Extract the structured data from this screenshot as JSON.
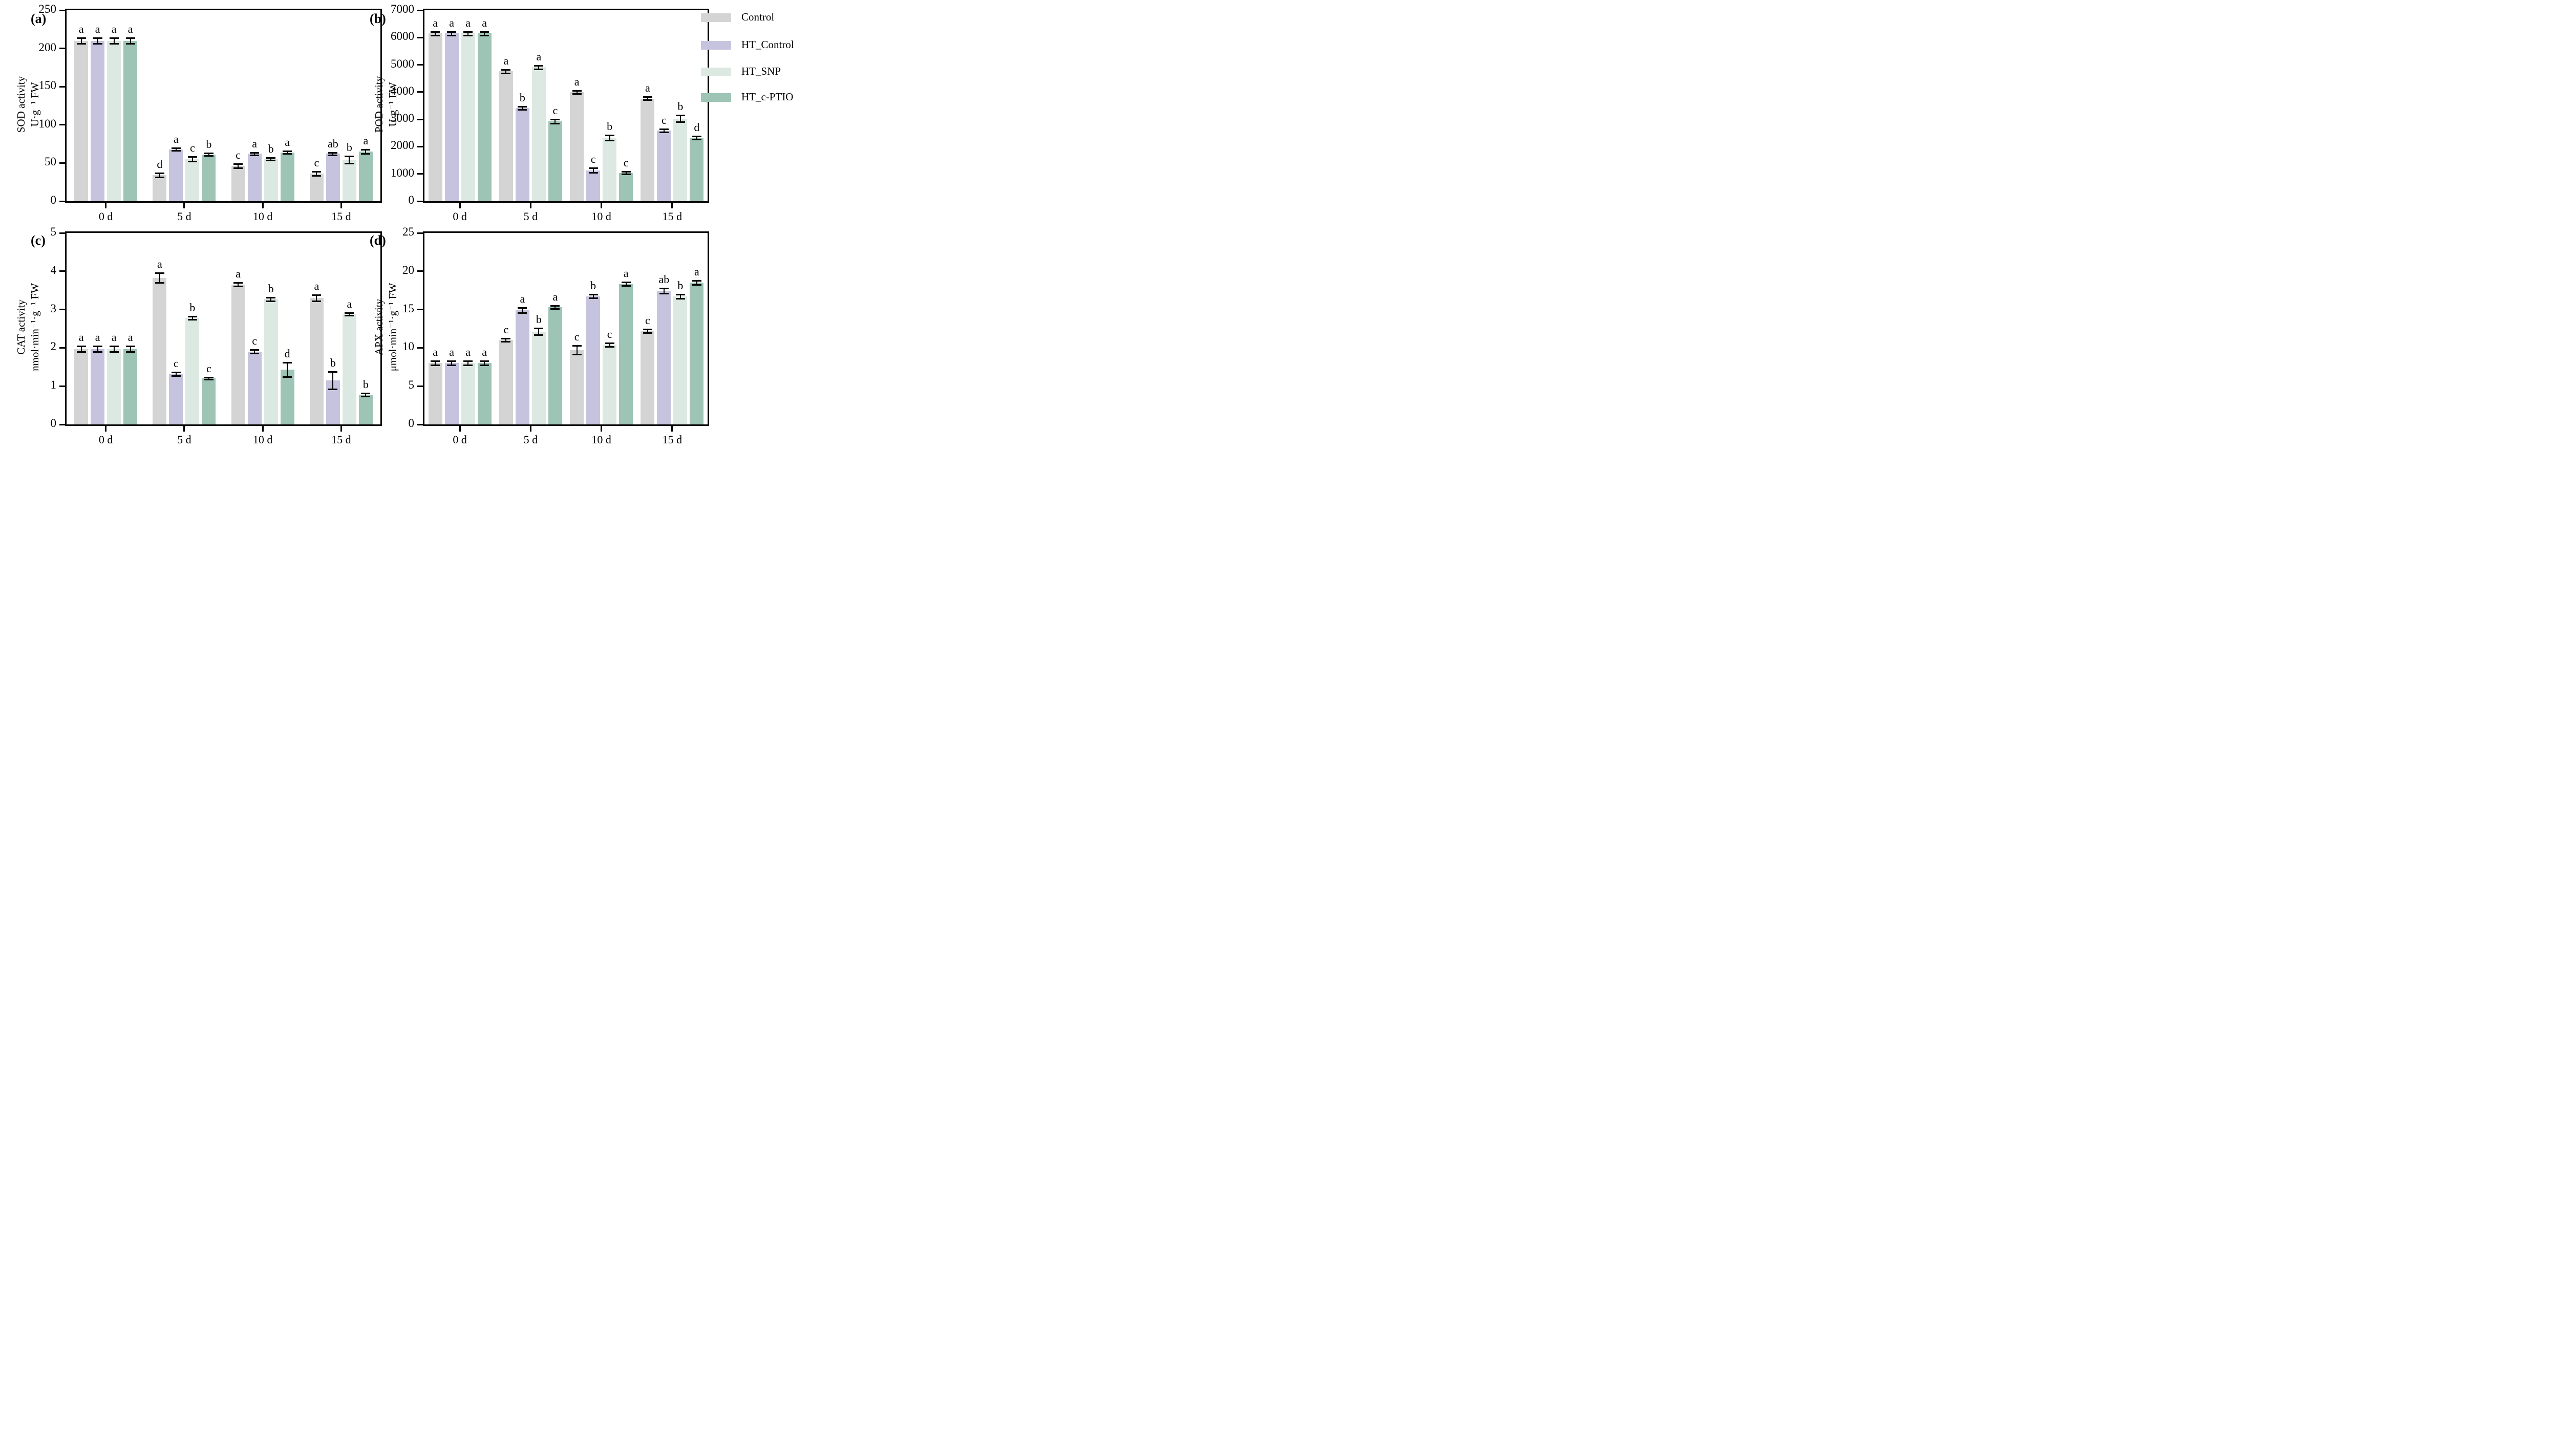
{
  "figure": {
    "background": "#ffffff",
    "axis_color": "#000000"
  },
  "legend": {
    "position": "top-right-outside",
    "items": [
      {
        "label": "Control",
        "color": "#d4d4d4"
      },
      {
        "label": "HT_Control",
        "color": "#c6c3de"
      },
      {
        "label": "HT_SNP",
        "color": "#dce9e2"
      },
      {
        "label": "HT_c-PTIO",
        "color": "#9dc4b5"
      }
    ]
  },
  "chart_data": [
    {
      "type": "bar",
      "panel_label": "(a)",
      "ylabel_line1": "SOD activity",
      "ylabel_line2": "U·g⁻¹ FW",
      "ylim": [
        0,
        250
      ],
      "yticks": [
        0,
        50,
        100,
        150,
        200,
        250
      ],
      "categories": [
        "0 d",
        "5 d",
        "10 d",
        "15 d"
      ],
      "grid": false,
      "series": [
        {
          "name": "Control",
          "values": [
            210,
            34,
            46,
            36
          ],
          "errors": [
            4,
            3,
            3,
            3
          ],
          "letters": [
            "a",
            "d",
            "c",
            "c"
          ]
        },
        {
          "name": "HT_Control",
          "values": [
            210,
            68,
            62,
            62
          ],
          "errors": [
            4,
            2,
            2,
            2
          ],
          "letters": [
            "a",
            "a",
            "a",
            "ab"
          ]
        },
        {
          "name": "HT_SNP",
          "values": [
            210,
            55,
            55,
            54
          ],
          "errors": [
            4,
            3,
            2,
            5
          ],
          "letters": [
            "a",
            "c",
            "b",
            "b"
          ]
        },
        {
          "name": "HT_c-PTIO",
          "values": [
            210,
            61,
            64,
            65
          ],
          "errors": [
            4,
            2,
            2,
            3
          ],
          "letters": [
            "a",
            "b",
            "a",
            "a"
          ]
        }
      ]
    },
    {
      "type": "bar",
      "panel_label": "(b)",
      "ylabel_line1": "POD activity",
      "ylabel_line2": "U·g⁻¹ FW",
      "ylim": [
        0,
        7000
      ],
      "yticks": [
        0,
        1000,
        2000,
        3000,
        4000,
        5000,
        6000,
        7000
      ],
      "categories": [
        "0 d",
        "5 d",
        "10 d",
        "15 d"
      ],
      "grid": false,
      "series": [
        {
          "name": "Control",
          "values": [
            6150,
            4760,
            4000,
            3760
          ],
          "errors": [
            70,
            70,
            60,
            60
          ],
          "letters": [
            "a",
            "a",
            "a",
            "a"
          ]
        },
        {
          "name": "HT_Control",
          "values": [
            6150,
            3410,
            1130,
            2590
          ],
          "errors": [
            70,
            60,
            90,
            60
          ],
          "letters": [
            "a",
            "b",
            "c",
            "c"
          ]
        },
        {
          "name": "HT_SNP",
          "values": [
            6150,
            4910,
            2330,
            3030
          ],
          "errors": [
            70,
            70,
            100,
            130
          ],
          "letters": [
            "a",
            "a",
            "b",
            "b"
          ]
        },
        {
          "name": "HT_c-PTIO",
          "values": [
            6150,
            2920,
            1040,
            2330
          ],
          "errors": [
            70,
            80,
            50,
            60
          ],
          "letters": [
            "a",
            "c",
            "c",
            "d"
          ]
        }
      ]
    },
    {
      "type": "bar",
      "panel_label": "(c)",
      "ylabel_line1": "CAT activity",
      "ylabel_line2": "nmol·min⁻¹·g⁻¹ FW",
      "ylim": [
        0,
        5
      ],
      "yticks": [
        0,
        1,
        2,
        3,
        4,
        5
      ],
      "categories": [
        "0 d",
        "5 d",
        "10 d",
        "15 d"
      ],
      "grid": false,
      "series": [
        {
          "name": "Control",
          "values": [
            1.97,
            3.83,
            3.65,
            3.3
          ],
          "errors": [
            0.08,
            0.13,
            0.05,
            0.08
          ],
          "letters": [
            "a",
            "a",
            "a",
            "a"
          ]
        },
        {
          "name": "HT_Control",
          "values": [
            1.97,
            1.32,
            1.9,
            1.15
          ],
          "errors": [
            0.08,
            0.05,
            0.05,
            0.23
          ],
          "letters": [
            "a",
            "c",
            "c",
            "b"
          ]
        },
        {
          "name": "HT_SNP",
          "values": [
            1.97,
            2.78,
            3.27,
            2.88
          ],
          "errors": [
            0.08,
            0.04,
            0.05,
            0.04
          ],
          "letters": [
            "a",
            "b",
            "b",
            "a"
          ]
        },
        {
          "name": "HT_c-PTIO",
          "values": [
            1.97,
            1.2,
            1.43,
            0.77
          ],
          "errors": [
            0.08,
            0.03,
            0.19,
            0.04
          ],
          "letters": [
            "a",
            "c",
            "d",
            "b"
          ]
        }
      ]
    },
    {
      "type": "bar",
      "panel_label": "(d)",
      "ylabel_line1": "APX activity",
      "ylabel_line2": "μmol·min⁻¹·g⁻¹ FW",
      "ylim": [
        0,
        25
      ],
      "yticks": [
        0,
        5,
        10,
        15,
        20,
        25
      ],
      "categories": [
        "0 d",
        "5 d",
        "10 d",
        "15 d"
      ],
      "grid": false,
      "series": [
        {
          "name": "Control",
          "values": [
            8.0,
            11.0,
            9.7,
            12.2
          ],
          "errors": [
            0.3,
            0.2,
            0.6,
            0.25
          ],
          "letters": [
            "a",
            "c",
            "c",
            "c"
          ]
        },
        {
          "name": "HT_Control",
          "values": [
            8.0,
            14.9,
            16.7,
            17.4
          ],
          "errors": [
            0.3,
            0.35,
            0.25,
            0.35
          ],
          "letters": [
            "a",
            "a",
            "b",
            "ab"
          ]
        },
        {
          "name": "HT_SNP",
          "values": [
            8.0,
            12.1,
            10.4,
            16.7
          ],
          "errors": [
            0.3,
            0.45,
            0.25,
            0.3
          ],
          "letters": [
            "a",
            "b",
            "c",
            "b"
          ]
        },
        {
          "name": "HT_c-PTIO",
          "values": [
            8.0,
            15.3,
            18.3,
            18.5
          ],
          "errors": [
            0.3,
            0.2,
            0.25,
            0.3
          ],
          "letters": [
            "a",
            "a",
            "a",
            "a"
          ]
        }
      ]
    }
  ]
}
